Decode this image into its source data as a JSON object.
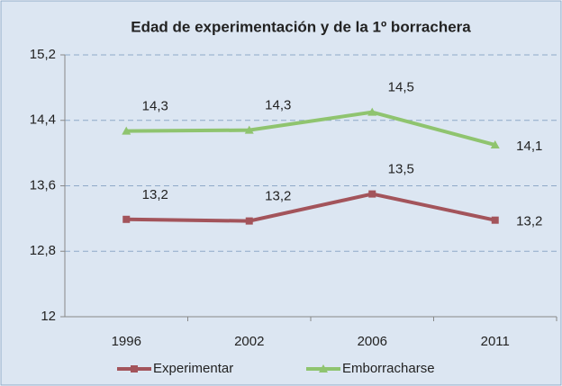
{
  "chart_data": {
    "type": "line",
    "title": "Edad de experimentación y de la 1º borrachera",
    "categories": [
      "1996",
      "2002",
      "2006",
      "2011"
    ],
    "series": [
      {
        "name": "Experimentar",
        "color": "#a3545b",
        "marker": "square",
        "values": [
          13.19,
          13.17,
          13.5,
          13.18
        ],
        "value_labels": [
          "13,2",
          "13,2",
          "13,5",
          "13,2"
        ]
      },
      {
        "name": "Emborracharse",
        "color": "#8fc46f",
        "marker": "triangle",
        "values": [
          14.27,
          14.28,
          14.5,
          14.1
        ],
        "value_labels": [
          "14,3",
          "14,3",
          "14,5",
          "14,1"
        ]
      }
    ],
    "ylim": [
      12,
      15.2
    ],
    "yticks": [
      12,
      {
        "value": 12.8,
        "label": "12,8"
      },
      {
        "value": 13.6,
        "label": "13,6"
      },
      {
        "value": 14.4,
        "label": "14,4"
      },
      {
        "value": 15.2,
        "label": "15,2"
      }
    ],
    "grid": true,
    "legend": "bottom"
  }
}
